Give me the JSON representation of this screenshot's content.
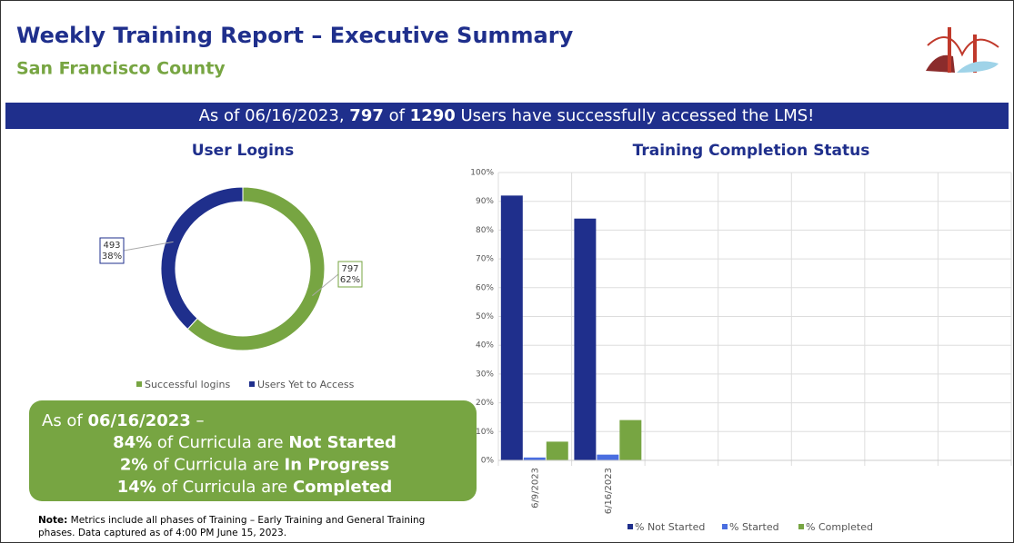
{
  "header": {
    "title": "Weekly Training Report – Executive Summary",
    "subtitle": "San Francisco County"
  },
  "banner": {
    "parts": [
      "As of 06/16/2023, ",
      "797",
      " of ",
      "1290",
      " Users have successfully accessed the LMS!"
    ]
  },
  "chart_data": [
    {
      "type": "donut",
      "title": "User Logins",
      "categories": [
        "Successful logins",
        "Users Yet to Access"
      ],
      "values": [
        797,
        493
      ],
      "percent_labels": [
        "62%",
        "38%"
      ],
      "colors": [
        "#77a542",
        "#1f2f8c"
      ],
      "legend": "bottom"
    },
    {
      "type": "bar",
      "title": "Training Completion Status",
      "categories": [
        "6/9/2023",
        "6/16/2023",
        null,
        null,
        null,
        null,
        null
      ],
      "series": [
        {
          "name": "% Not Started",
          "color": "#1f2f8c",
          "values": [
            92,
            84,
            null,
            null,
            null,
            null,
            null
          ]
        },
        {
          "name": "% Started",
          "color": "#4a6ee0",
          "values": [
            1,
            2,
            null,
            null,
            null,
            null,
            null
          ]
        },
        {
          "name": "% Completed",
          "color": "#77a542",
          "values": [
            6.5,
            14,
            null,
            null,
            null,
            null,
            null
          ]
        }
      ],
      "ylim": [
        0,
        100
      ],
      "yticks": [
        {
          "value": 0,
          "label": "0%"
        },
        {
          "value": 10,
          "label": "10%"
        },
        {
          "value": 20,
          "label": "20%"
        },
        {
          "value": 30,
          "label": "30%"
        },
        {
          "value": 40,
          "label": "40%"
        },
        {
          "value": 50,
          "label": "50%"
        },
        {
          "value": 60,
          "label": "60%"
        },
        {
          "value": 70,
          "label": "70%"
        },
        {
          "value": 80,
          "label": "80%"
        },
        {
          "value": 90,
          "label": "90%"
        },
        {
          "value": 100,
          "label": "100%"
        }
      ],
      "grid": true,
      "legend": "bottom"
    }
  ],
  "summary": {
    "prefix": "As of ",
    "date": "06/16/2023",
    "dash": " –",
    "lines": [
      {
        "percent": "84%",
        "text": " of Curricula are ",
        "status": "Not Started"
      },
      {
        "percent": "2%",
        "text": " of Curricula are ",
        "status": "In Progress"
      },
      {
        "percent": "14%",
        "text": " of Curricula are ",
        "status": "Completed"
      }
    ]
  },
  "note": {
    "label": "Note:",
    "lines": [
      " Metrics include all phases of Training – Early Training and General Training",
      "phases. Data captured as of 4:00 PM June 15, 2023."
    ]
  }
}
